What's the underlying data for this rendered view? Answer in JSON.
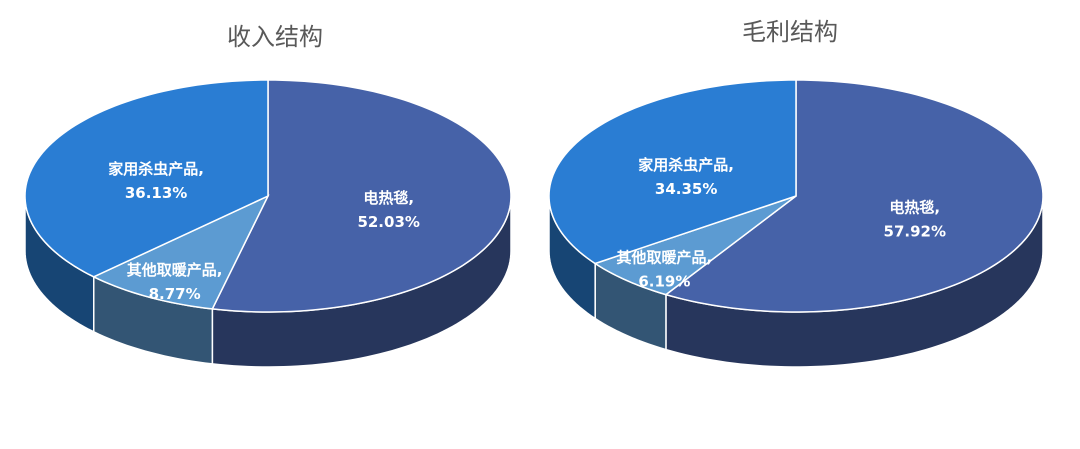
{
  "chart_data": [
    {
      "type": "pie",
      "title": "收入结构",
      "categories": [
        "电热毯,",
        "其他取暖产品,",
        "家用杀虫产品,"
      ],
      "values": [
        52.03,
        8.77,
        36.13
      ],
      "value_labels": [
        "52.03%",
        "8.77%",
        "36.13%"
      ],
      "colors": [
        "#4662a8",
        "#5c9bd2",
        "#2a7dd3"
      ]
    },
    {
      "type": "pie",
      "title": "毛利结构",
      "categories": [
        "电热毯,",
        "其他取暖产品,",
        "家用杀虫产品,"
      ],
      "values": [
        57.92,
        6.19,
        34.35
      ],
      "value_labels": [
        "57.92%",
        "6.19%",
        "34.35%"
      ],
      "colors": [
        "#4662a8",
        "#5c9bd2",
        "#2a7dd3"
      ]
    }
  ]
}
